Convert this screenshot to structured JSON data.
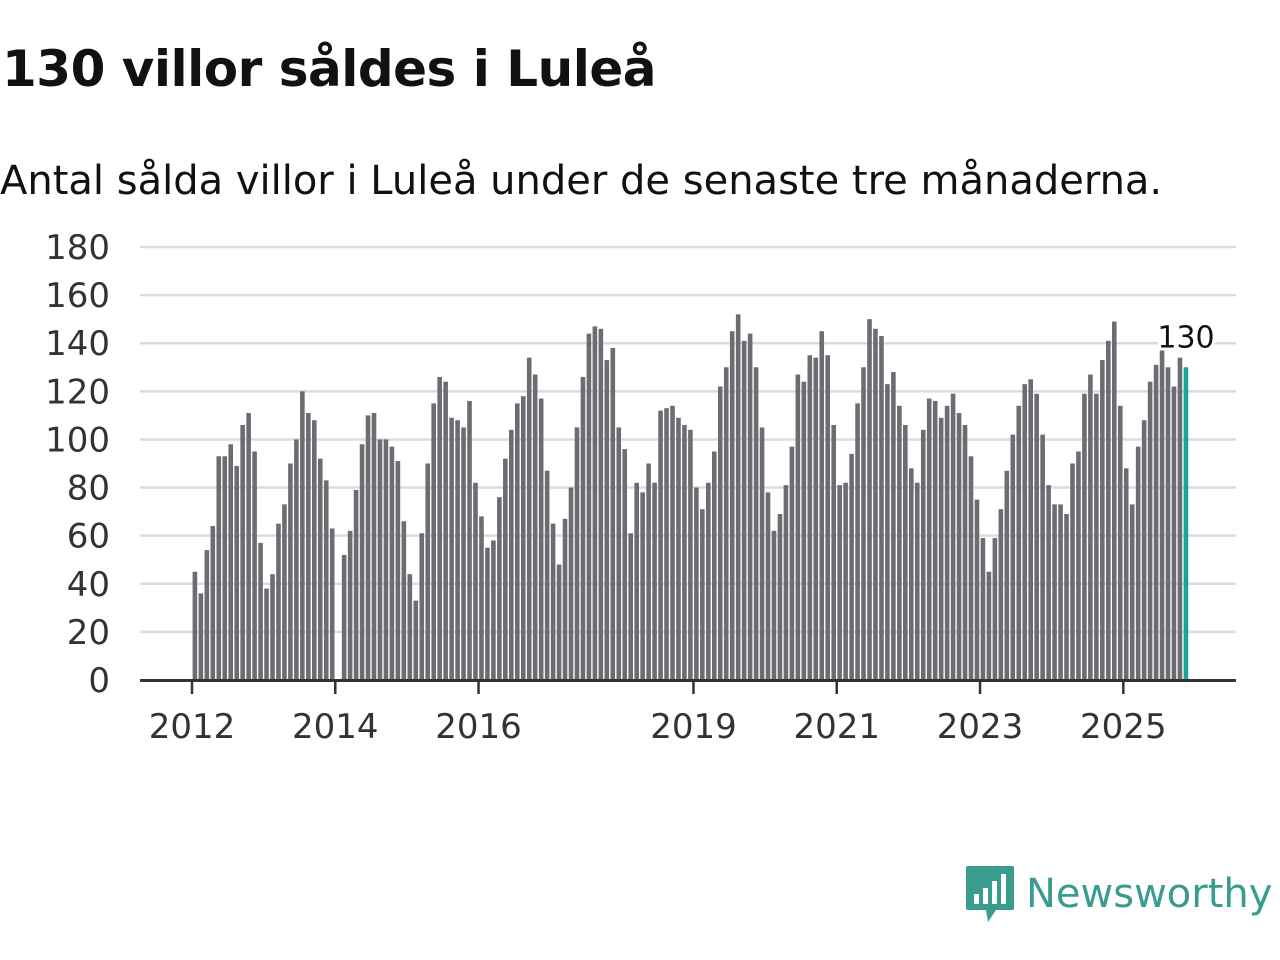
{
  "title": "130 villor såldes i Luleå",
  "subtitle": "Antal sålda villor i Luleå under de senaste tre månaderna.",
  "logo": "Newsworthy",
  "colors": {
    "bar": "#6d6c72",
    "highlight": "#1aa39a",
    "grid": "#dcdcdc",
    "axis": "#333333",
    "brand": "#3a9b8f"
  },
  "chart_data": {
    "type": "bar",
    "title": "130 villor såldes i Luleå",
    "xlabel": "",
    "ylabel": "",
    "ylim": [
      0,
      180
    ],
    "yticks": [
      0,
      20,
      40,
      60,
      80,
      100,
      120,
      140,
      160,
      180
    ],
    "xtick_labels": [
      {
        "label": "2012",
        "year": 2012
      },
      {
        "label": "2014",
        "year": 2014
      },
      {
        "label": "2016",
        "year": 2016
      },
      {
        "label": "2019",
        "year": 2019
      },
      {
        "label": "2021",
        "year": 2021
      },
      {
        "label": "2023",
        "year": 2023
      },
      {
        "label": "2025",
        "year": 2025
      }
    ],
    "start": "2012-01",
    "frequency": "monthly",
    "highlight_label": "130",
    "values": [
      45,
      36,
      54,
      64,
      93,
      93,
      98,
      89,
      106,
      111,
      95,
      57,
      38,
      44,
      65,
      73,
      90,
      100,
      120,
      111,
      108,
      92,
      83,
      63,
      null,
      52,
      62,
      79,
      98,
      110,
      111,
      100,
      100,
      97,
      91,
      66,
      44,
      33,
      61,
      90,
      115,
      126,
      124,
      109,
      108,
      105,
      116,
      82,
      68,
      55,
      58,
      76,
      92,
      104,
      115,
      118,
      134,
      127,
      117,
      87,
      65,
      48,
      67,
      80,
      105,
      126,
      144,
      147,
      146,
      133,
      138,
      105,
      96,
      61,
      82,
      78,
      90,
      82,
      112,
      113,
      114,
      109,
      106,
      104,
      80,
      71,
      82,
      95,
      122,
      130,
      145,
      152,
      141,
      144,
      130,
      105,
      78,
      62,
      69,
      81,
      97,
      127,
      124,
      135,
      134,
      145,
      135,
      106,
      81,
      82,
      94,
      115,
      130,
      150,
      146,
      143,
      123,
      128,
      114,
      106,
      88,
      82,
      104,
      117,
      116,
      109,
      114,
      119,
      111,
      106,
      93,
      75,
      59,
      45,
      59,
      71,
      87,
      102,
      114,
      123,
      125,
      119,
      102,
      81,
      73,
      73,
      69,
      90,
      95,
      119,
      127,
      119,
      133,
      141,
      149,
      114,
      88,
      73,
      97,
      108,
      124,
      131,
      138,
      130,
      122,
      134,
      130
    ]
  }
}
